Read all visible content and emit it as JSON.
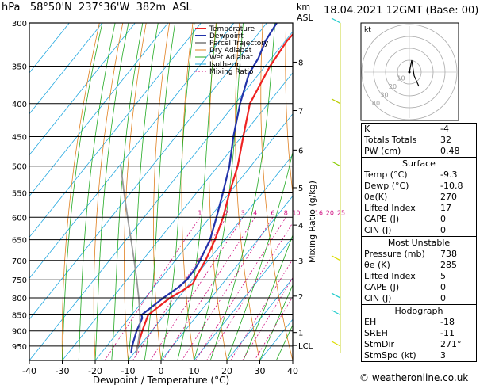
{
  "header": {
    "hpa_unit": "hPa",
    "location": "58°50'N  237°36'W  382m  ASL",
    "km_unit": "km",
    "asl_unit": "ASL",
    "datetime": "18.04.2021  12GMT  (Base: 00)"
  },
  "footer": {
    "credit": "© weatheronline.co.uk"
  },
  "chart_data": {
    "type": "line",
    "title": "",
    "xlabel": "Dewpoint / Temperature (°C)",
    "ylabel": "hPa",
    "right_label": "Mixing Ratio (g/kg)",
    "xlim": [
      -40,
      40
    ],
    "ylim": [
      300,
      1000
    ],
    "x_ticks": [
      -40,
      -30,
      -20,
      -10,
      0,
      10,
      20,
      30,
      40
    ],
    "pressure_levels": [
      300,
      350,
      400,
      450,
      500,
      550,
      600,
      650,
      700,
      750,
      800,
      850,
      900,
      950
    ],
    "km_ticks": [
      {
        "label": "8",
        "p": 345
      },
      {
        "label": "7",
        "p": 410
      },
      {
        "label": "6",
        "p": 472
      },
      {
        "label": "5",
        "p": 540
      },
      {
        "label": "4",
        "p": 617
      },
      {
        "label": "3",
        "p": 700
      },
      {
        "label": "2",
        "p": 795
      },
      {
        "label": "1",
        "p": 905
      },
      {
        "label": "LCL",
        "p": 948
      }
    ],
    "mixing_ratio_labels": [
      "1",
      "2",
      "3",
      "4",
      "6",
      "8",
      "10",
      "16",
      "20",
      "25"
    ],
    "legend": [
      "Temperature",
      "Dewpoint",
      "Parcel Trajectory",
      "Dry Adiabat",
      "Wet Adiabat",
      "Isotherm",
      "Mixing Ratio"
    ],
    "legend_colors": [
      "#ee2222",
      "#2233aa",
      "#999999",
      "#e08020",
      "#22aa22",
      "#22a8e0",
      "#d01080"
    ],
    "series": [
      {
        "name": "Temperature",
        "points": [
          [
            -9.3,
            975
          ],
          [
            -10.6,
            950
          ],
          [
            -12.9,
            900
          ],
          [
            -15.0,
            850
          ],
          [
            -12.5,
            800
          ],
          [
            -10.5,
            780
          ],
          [
            -9.0,
            760
          ],
          [
            -9.8,
            740
          ],
          [
            -10.8,
            700
          ],
          [
            -13.0,
            650
          ],
          [
            -16.0,
            600
          ],
          [
            -20.0,
            550
          ],
          [
            -24.0,
            500
          ],
          [
            -29.5,
            450
          ],
          [
            -35.5,
            400
          ],
          [
            -38.5,
            350
          ],
          [
            -39.5,
            320
          ],
          [
            -39.0,
            300
          ]
        ]
      },
      {
        "name": "Dewpoint",
        "points": [
          [
            -10.8,
            975
          ],
          [
            -12.3,
            950
          ],
          [
            -14.6,
            900
          ],
          [
            -16.0,
            860
          ],
          [
            -17.0,
            850
          ],
          [
            -14.5,
            800
          ],
          [
            -12.5,
            770
          ],
          [
            -11.8,
            750
          ],
          [
            -12.0,
            720
          ],
          [
            -12.5,
            700
          ],
          [
            -14.5,
            650
          ],
          [
            -18.0,
            600
          ],
          [
            -22.0,
            550
          ],
          [
            -26.5,
            500
          ],
          [
            -32.5,
            450
          ],
          [
            -38.5,
            400
          ],
          [
            -43.0,
            360
          ],
          [
            -44.0,
            340
          ],
          [
            -46.0,
            320
          ],
          [
            -47.0,
            300
          ]
        ]
      },
      {
        "name": "Parcel Trajectory",
        "points": [
          [
            -9.3,
            975
          ],
          [
            -10.6,
            950
          ],
          [
            -13.6,
            900
          ],
          [
            -17.5,
            850
          ],
          [
            -22.0,
            800
          ],
          [
            -27.0,
            750
          ],
          [
            -32.5,
            700
          ],
          [
            -38.5,
            650
          ],
          [
            -45.0,
            600
          ],
          [
            -52.0,
            550
          ],
          [
            -59.5,
            500
          ]
        ]
      }
    ]
  },
  "hodograph": {
    "unit_label": "kt",
    "ring_labels": [
      "10",
      "20",
      "30",
      "40"
    ],
    "points": [
      [
        0,
        0
      ],
      [
        1,
        5
      ],
      [
        2,
        10
      ],
      [
        4,
        -3
      ],
      [
        8,
        -12
      ]
    ]
  },
  "indices": {
    "rows": [
      {
        "label": "K",
        "value": "-4"
      },
      {
        "label": "Totals Totals",
        "value": "32"
      },
      {
        "label": "PW (cm)",
        "value": "0.48"
      }
    ]
  },
  "surface": {
    "title": "Surface",
    "rows": [
      {
        "label": "Temp (°C)",
        "value": "-9.3"
      },
      {
        "label": "Dewp (°C)",
        "value": "-10.8"
      },
      {
        "label": "θe(K)",
        "value": "270"
      },
      {
        "label": "Lifted Index",
        "value": "17"
      },
      {
        "label": "CAPE (J)",
        "value": "0"
      },
      {
        "label": "CIN (J)",
        "value": "0"
      }
    ]
  },
  "most_unstable": {
    "title": "Most Unstable",
    "rows": [
      {
        "label": "Pressure (mb)",
        "value": "738"
      },
      {
        "label": "θe (K)",
        "value": "285"
      },
      {
        "label": "Lifted Index",
        "value": "5"
      },
      {
        "label": "CAPE (J)",
        "value": "0"
      },
      {
        "label": "CIN (J)",
        "value": "0"
      }
    ]
  },
  "hodograph_table": {
    "title": "Hodograph",
    "rows": [
      {
        "label": "EH",
        "value": "-18"
      },
      {
        "label": "SREH",
        "value": "-11"
      },
      {
        "label": "StmDir",
        "value": "271°"
      },
      {
        "label": "StmSpd (kt)",
        "value": "3"
      }
    ]
  }
}
